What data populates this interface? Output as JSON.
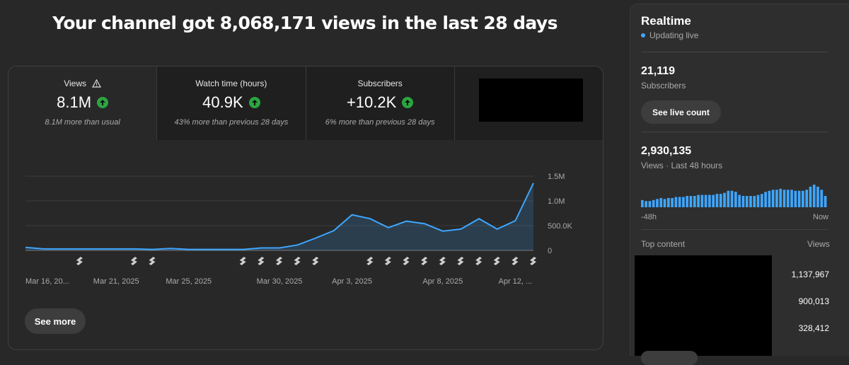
{
  "headline": "Your channel got 8,068,171 views in the last 28 days",
  "metrics": [
    {
      "label": "Views",
      "value": "8.1M",
      "sub": "8.1M more than usual",
      "warning_icon": "warning-icon"
    },
    {
      "label": "Watch time (hours)",
      "value": "40.9K",
      "sub": "43% more than previous 28 days"
    },
    {
      "label": "Subscribers",
      "value": "+10.2K",
      "sub": "6% more than previous 28 days"
    }
  ],
  "chart_data": {
    "type": "line",
    "y_ticks": [
      "1.5M",
      "1.0M",
      "500.0K",
      "0"
    ],
    "ylim": [
      0,
      1500000
    ],
    "x_labels": [
      "Mar 16, 20...",
      "Mar 21, 2025",
      "Mar 25, 2025",
      "Mar 30, 2025",
      "Apr 3, 2025",
      "Apr 8, 2025",
      "Apr 12, ..."
    ],
    "values": [
      60000,
      30000,
      30000,
      30000,
      30000,
      30000,
      30000,
      20000,
      40000,
      20000,
      20000,
      20000,
      20000,
      50000,
      50000,
      110000,
      250000,
      400000,
      720000,
      640000,
      460000,
      590000,
      540000,
      390000,
      430000,
      640000,
      430000,
      600000,
      1360000
    ],
    "marker_days": [
      3,
      6,
      7,
      12,
      13,
      14,
      15,
      16,
      19,
      20,
      21,
      22,
      23,
      24,
      25,
      26,
      27,
      28
    ],
    "grid": true,
    "line_color": "#3ea6ff"
  },
  "see_more": "See more",
  "realtime": {
    "title": "Realtime",
    "status": "Updating live",
    "subscribers_value": "21,119",
    "subscribers_label": "Subscribers",
    "live_count_button": "See live count",
    "views_value": "2,930,135",
    "views_label": "Views · Last 48 hours",
    "bar_values": [
      7,
      6,
      6,
      7,
      8,
      9,
      8,
      9,
      9,
      10,
      10,
      10,
      11,
      11,
      11,
      12,
      12,
      12,
      12,
      12,
      13,
      13,
      14,
      16,
      16,
      15,
      12,
      11,
      11,
      11,
      11,
      12,
      13,
      15,
      16,
      17,
      17,
      18,
      17,
      17,
      17,
      16,
      16,
      16,
      17,
      20,
      22,
      20,
      17,
      11
    ],
    "axis_left": "-48h",
    "axis_right": "Now",
    "top_content_label": "Top content",
    "top_content_views_label": "Views",
    "top_content": [
      "1,137,967",
      "900,013",
      "328,412"
    ]
  }
}
